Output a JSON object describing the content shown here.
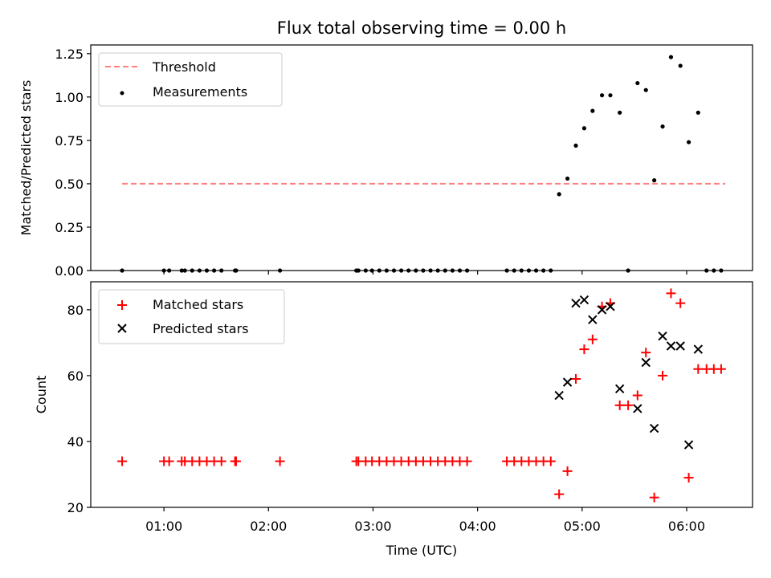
{
  "chart_data": {
    "title": "Flux total observing time = 0.00 h",
    "xlabel": "Time (UTC)",
    "x_unit": "hours UTC",
    "xlim": [
      0.3,
      6.63
    ],
    "xticks": [
      {
        "value": 1,
        "label": "01:00"
      },
      {
        "value": 2,
        "label": "02:00"
      },
      {
        "value": 3,
        "label": "03:00"
      },
      {
        "value": 4,
        "label": "04:00"
      },
      {
        "value": 5,
        "label": "05:00"
      },
      {
        "value": 6,
        "label": "06:00"
      }
    ],
    "panels": [
      {
        "type": "scatter",
        "ylabel": "Matched/Predicted stars",
        "ylim": [
          0,
          1.3
        ],
        "yticks": [
          {
            "value": 0,
            "label": "0.00"
          },
          {
            "value": 0.25,
            "label": "0.25"
          },
          {
            "value": 0.5,
            "label": "0.50"
          },
          {
            "value": 0.75,
            "label": "0.75"
          },
          {
            "value": 1.0,
            "label": "1.00"
          },
          {
            "value": 1.25,
            "label": "1.25"
          }
        ],
        "legend_position": "top-left",
        "threshold": {
          "name": "Threshold",
          "y": 0.5,
          "x_range": [
            0.6,
            6.37
          ],
          "color": "#ff7f7f",
          "style": "dashed"
        },
        "series": [
          {
            "name": "Measurements",
            "color": "#000000",
            "marker": "dot",
            "points": [
              [
                0.6,
                0
              ],
              [
                1.0,
                0
              ],
              [
                1.05,
                0
              ],
              [
                1.17,
                0
              ],
              [
                1.2,
                0
              ],
              [
                1.27,
                0
              ],
              [
                1.34,
                0
              ],
              [
                1.41,
                0
              ],
              [
                1.48,
                0
              ],
              [
                1.55,
                0
              ],
              [
                1.68,
                0
              ],
              [
                1.69,
                0
              ],
              [
                2.11,
                0
              ],
              [
                2.84,
                0
              ],
              [
                2.86,
                0
              ],
              [
                2.93,
                0
              ],
              [
                2.99,
                0
              ],
              [
                3.06,
                0
              ],
              [
                3.13,
                0
              ],
              [
                3.2,
                0
              ],
              [
                3.27,
                0
              ],
              [
                3.34,
                0
              ],
              [
                3.41,
                0
              ],
              [
                3.48,
                0
              ],
              [
                3.55,
                0
              ],
              [
                3.62,
                0
              ],
              [
                3.69,
                0
              ],
              [
                3.76,
                0
              ],
              [
                3.83,
                0
              ],
              [
                3.9,
                0
              ],
              [
                4.28,
                0
              ],
              [
                4.35,
                0
              ],
              [
                4.42,
                0
              ],
              [
                4.49,
                0
              ],
              [
                4.56,
                0
              ],
              [
                4.63,
                0
              ],
              [
                4.7,
                0
              ],
              [
                4.78,
                0.44
              ],
              [
                4.86,
                0.53
              ],
              [
                4.94,
                0.72
              ],
              [
                5.02,
                0.82
              ],
              [
                5.1,
                0.92
              ],
              [
                5.19,
                1.01
              ],
              [
                5.27,
                1.01
              ],
              [
                5.36,
                0.91
              ],
              [
                5.44,
                0
              ],
              [
                5.53,
                1.08
              ],
              [
                5.61,
                1.04
              ],
              [
                5.69,
                0.52
              ],
              [
                5.77,
                0.83
              ],
              [
                5.85,
                1.23
              ],
              [
                5.94,
                1.18
              ],
              [
                6.02,
                0.74
              ],
              [
                6.11,
                0.91
              ],
              [
                6.19,
                0
              ],
              [
                6.26,
                0
              ],
              [
                6.33,
                0
              ]
            ]
          }
        ]
      },
      {
        "type": "scatter",
        "ylabel": "Count",
        "ylim": [
          20,
          88.5
        ],
        "yticks": [
          {
            "value": 20,
            "label": "20"
          },
          {
            "value": 40,
            "label": "40"
          },
          {
            "value": 60,
            "label": "60"
          },
          {
            "value": 80,
            "label": "80"
          }
        ],
        "legend_position": "top-left",
        "series": [
          {
            "name": "Matched stars",
            "color": "#ff0000",
            "marker": "plus",
            "points": [
              [
                0.6,
                34
              ],
              [
                1.0,
                34
              ],
              [
                1.05,
                34
              ],
              [
                1.17,
                34
              ],
              [
                1.2,
                34
              ],
              [
                1.27,
                34
              ],
              [
                1.34,
                34
              ],
              [
                1.41,
                34
              ],
              [
                1.48,
                34
              ],
              [
                1.55,
                34
              ],
              [
                1.68,
                34
              ],
              [
                1.69,
                34
              ],
              [
                2.11,
                34
              ],
              [
                2.84,
                34
              ],
              [
                2.86,
                34
              ],
              [
                2.93,
                34
              ],
              [
                2.99,
                34
              ],
              [
                3.06,
                34
              ],
              [
                3.13,
                34
              ],
              [
                3.2,
                34
              ],
              [
                3.27,
                34
              ],
              [
                3.34,
                34
              ],
              [
                3.41,
                34
              ],
              [
                3.48,
                34
              ],
              [
                3.55,
                34
              ],
              [
                3.62,
                34
              ],
              [
                3.69,
                34
              ],
              [
                3.76,
                34
              ],
              [
                3.83,
                34
              ],
              [
                3.9,
                34
              ],
              [
                4.28,
                34
              ],
              [
                4.35,
                34
              ],
              [
                4.42,
                34
              ],
              [
                4.49,
                34
              ],
              [
                4.56,
                34
              ],
              [
                4.63,
                34
              ],
              [
                4.7,
                34
              ],
              [
                4.78,
                24
              ],
              [
                4.86,
                31
              ],
              [
                4.94,
                59
              ],
              [
                5.02,
                68
              ],
              [
                5.1,
                71
              ],
              [
                5.19,
                81
              ],
              [
                5.27,
                82
              ],
              [
                5.36,
                51
              ],
              [
                5.44,
                51
              ],
              [
                5.53,
                54
              ],
              [
                5.61,
                67
              ],
              [
                5.69,
                23
              ],
              [
                5.77,
                60
              ],
              [
                5.85,
                85
              ],
              [
                5.94,
                82
              ],
              [
                6.02,
                29
              ],
              [
                6.11,
                62
              ],
              [
                6.19,
                62
              ],
              [
                6.26,
                62
              ],
              [
                6.33,
                62
              ]
            ]
          },
          {
            "name": "Predicted stars",
            "color": "#000000",
            "marker": "cross",
            "points": [
              [
                4.78,
                54
              ],
              [
                4.86,
                58
              ],
              [
                4.94,
                82
              ],
              [
                5.02,
                83
              ],
              [
                5.1,
                77
              ],
              [
                5.19,
                80
              ],
              [
                5.27,
                81
              ],
              [
                5.36,
                56
              ],
              [
                5.53,
                50
              ],
              [
                5.61,
                64
              ],
              [
                5.69,
                44
              ],
              [
                5.77,
                72
              ],
              [
                5.85,
                69
              ],
              [
                5.94,
                69
              ],
              [
                6.02,
                39
              ],
              [
                6.11,
                68
              ]
            ]
          }
        ]
      }
    ]
  }
}
